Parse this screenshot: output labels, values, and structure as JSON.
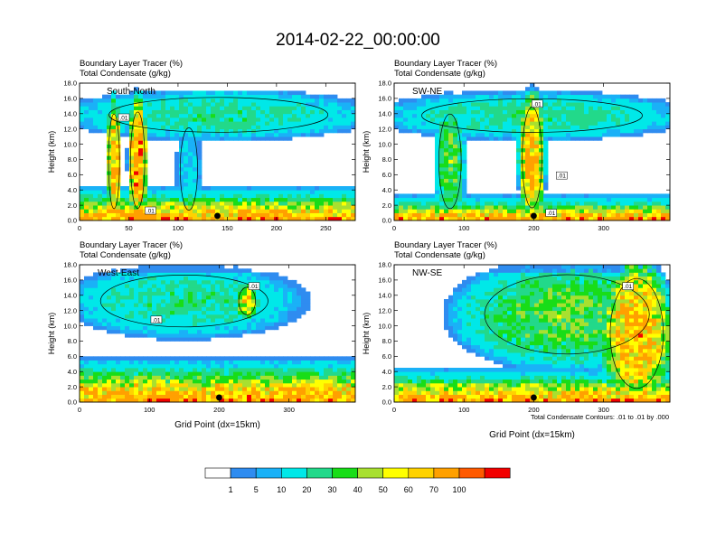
{
  "figure": {
    "title": "2014-02-22_00:00:00",
    "contour_note": "Total Condensate Contours: .01 to .01 by .000",
    "colorbar": {
      "labels": [
        "1",
        "5",
        "10",
        "20",
        "30",
        "40",
        "50",
        "60",
        "70",
        "100"
      ],
      "colors": [
        "#ffffff",
        "#2f8cf0",
        "#1ab1f7",
        "#00e8e8",
        "#22d98a",
        "#18dd18",
        "#a8e030",
        "#ffff00",
        "#ffd200",
        "#ffa000",
        "#ff5a00",
        "#f20000"
      ]
    }
  },
  "chart_data": [
    {
      "type": "heatmap",
      "panel_label": "South-North",
      "title_lines": [
        "Boundary Layer Tracer   (%)",
        "Total Condensate   (g/kg)"
      ],
      "ylabel": "Height (km)",
      "xlabel": "",
      "ylim": [
        0,
        18
      ],
      "yticks": [
        "0.0",
        "2.0",
        "4.0",
        "6.0",
        "8.0",
        "10.0",
        "12.0",
        "14.0",
        "16.0",
        "18.0"
      ],
      "xlim": [
        0,
        280
      ],
      "xticks": [
        "0",
        "50",
        "100",
        "150",
        "200",
        "250"
      ],
      "marker_x": 140,
      "contour_labels": [
        {
          "text": ".01",
          "x": 45,
          "z": 13.5
        },
        {
          "text": ".01",
          "x": 72,
          "z": 1.3
        }
      ],
      "features": [
        {
          "type": "column",
          "x": [
            28,
            42
          ],
          "z": [
            0,
            15.5
          ],
          "value": 60
        },
        {
          "type": "column",
          "x": [
            50,
            68
          ],
          "z": [
            0,
            15.8
          ],
          "value": 70
        },
        {
          "type": "column",
          "x": [
            100,
            122
          ],
          "z": [
            0,
            13.5
          ],
          "value": 10
        },
        {
          "type": "upper",
          "x": [
            2,
            280
          ],
          "z": [
            11,
            16.7
          ],
          "value": 20
        },
        {
          "type": "boundary_layer",
          "x": [
            0,
            280
          ],
          "z": [
            0,
            3.5
          ],
          "value": 70
        }
      ]
    },
    {
      "type": "heatmap",
      "panel_label": "SW-NE",
      "title_lines": [
        "Boundary Layer Tracer   (%)",
        "Total Condensate   (g/kg)"
      ],
      "ylabel": "Height (km)",
      "xlabel": "",
      "ylim": [
        0,
        18
      ],
      "yticks": [
        "0.0",
        "2.0",
        "4.0",
        "6.0",
        "8.0",
        "10.0",
        "12.0",
        "14.0",
        "16.0",
        "18.0"
      ],
      "xlim": [
        0,
        395
      ],
      "xticks": [
        "0",
        "100",
        "200",
        "300"
      ],
      "marker_x": 200,
      "contour_labels": [
        {
          "text": ".01",
          "x": 205,
          "z": 15.3
        },
        {
          "text": ".01",
          "x": 240,
          "z": 5.9
        },
        {
          "text": ".01",
          "x": 225,
          "z": 1.0
        }
      ],
      "features": [
        {
          "type": "column",
          "x": [
            180,
            215
          ],
          "z": [
            0,
            16.5
          ],
          "value": 60
        },
        {
          "type": "column",
          "x": [
            60,
            100
          ],
          "z": [
            0,
            15.5
          ],
          "value": 30
        },
        {
          "type": "upper",
          "x": [
            0,
            395
          ],
          "z": [
            11,
            16.5
          ],
          "value": 20
        },
        {
          "type": "boundary_layer",
          "x": [
            0,
            395
          ],
          "z": [
            0,
            2.5
          ],
          "value": 70
        }
      ]
    },
    {
      "type": "heatmap",
      "panel_label": "West-East",
      "title_lines": [
        "Boundary Layer Tracer   (%)",
        "Total Condensate   (g/kg)"
      ],
      "ylabel": "Height (km)",
      "xlabel": "Grid Point (dx=15km)",
      "ylim": [
        0,
        18
      ],
      "yticks": [
        "0.0",
        "2.0",
        "4.0",
        "6.0",
        "8.0",
        "10.0",
        "12.0",
        "14.0",
        "16.0",
        "18.0"
      ],
      "xlim": [
        0,
        395
      ],
      "xticks": [
        "0",
        "100",
        "200",
        "300"
      ],
      "marker_x": 200,
      "contour_labels": [
        {
          "text": ".01",
          "x": 250,
          "z": 15.2
        },
        {
          "text": ".01",
          "x": 110,
          "z": 10.8
        }
      ],
      "features": [
        {
          "type": "upper",
          "x": [
            0,
            300
          ],
          "z": [
            9,
            17.5
          ],
          "value": 20
        },
        {
          "type": "column",
          "x": [
            225,
            255
          ],
          "z": [
            11,
            15.5
          ],
          "value": 50
        },
        {
          "type": "boundary_layer",
          "x": [
            0,
            395
          ],
          "z": [
            0,
            4.8
          ],
          "value": 70
        }
      ]
    },
    {
      "type": "heatmap",
      "panel_label": "NW-SE",
      "title_lines": [
        "Boundary Layer Tracer   (%)",
        "Total Condensate   (g/kg)"
      ],
      "ylabel": "Height (km)",
      "xlabel": "Grid Point (dx=15km)",
      "ylim": [
        0,
        18
      ],
      "yticks": [
        "0.0",
        "2.0",
        "4.0",
        "6.0",
        "8.0",
        "10.0",
        "12.0",
        "14.0",
        "16.0",
        "18.0"
      ],
      "xlim": [
        0,
        395
      ],
      "xticks": [
        "0",
        "100",
        "200",
        "300"
      ],
      "marker_x": 200,
      "contour_labels": [
        {
          "text": ".01",
          "x": 335,
          "z": 15.2
        }
      ],
      "features": [
        {
          "type": "column",
          "x": [
            300,
            395
          ],
          "z": [
            0,
            18
          ],
          "value": 60
        },
        {
          "type": "upper",
          "x": [
            100,
            395
          ],
          "z": [
            5,
            18
          ],
          "value": 30
        },
        {
          "type": "boundary_layer",
          "x": [
            0,
            395
          ],
          "z": [
            0,
            3.5
          ],
          "value": 70
        }
      ]
    }
  ]
}
